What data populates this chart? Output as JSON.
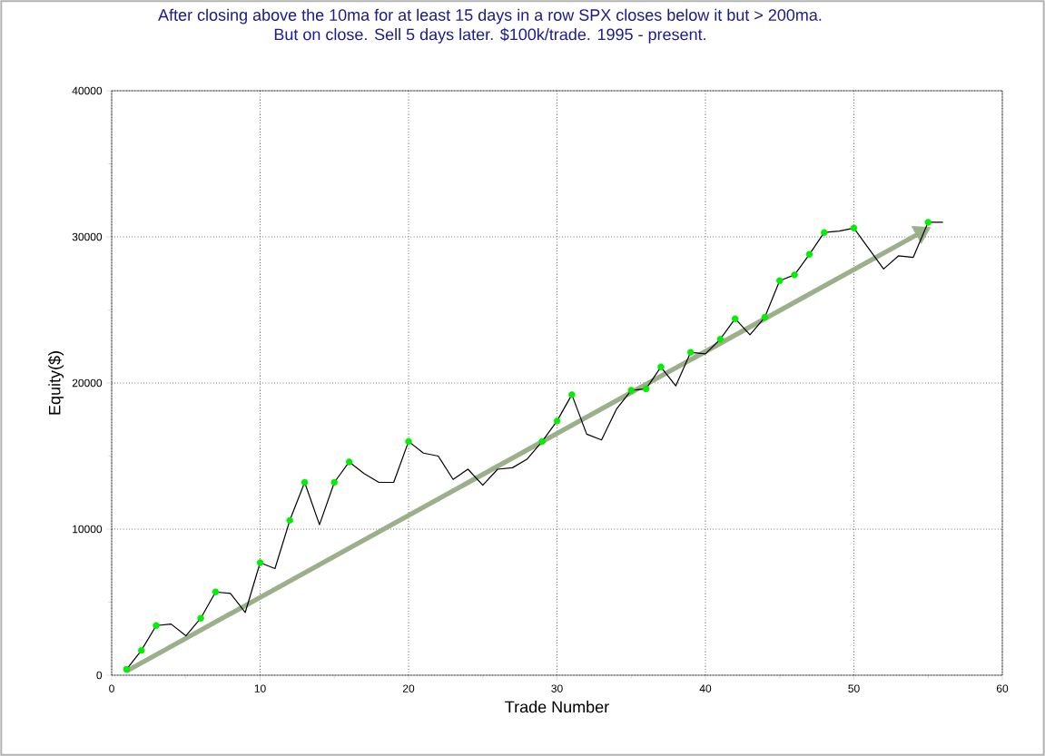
{
  "chart_data": {
    "type": "line",
    "title": "After closing above the 10ma for at least 15 days in a row SPX closes below it but > 200ma.",
    "subtitle": "But on close. Sell 5 days later. $100k/trade. 1995 - present.",
    "xlabel": "Trade Number",
    "ylabel": "Equity($)",
    "xlim": [
      0,
      60
    ],
    "ylim": [
      0,
      40000
    ],
    "xticks": [
      0,
      10,
      20,
      30,
      40,
      50,
      60
    ],
    "yticks": [
      0,
      10000,
      20000,
      30000,
      40000
    ],
    "grid": true,
    "series": [
      {
        "color": "#000000",
        "marker": "none",
        "x": [
          1,
          2,
          3,
          4,
          5,
          6,
          7,
          8,
          9,
          10,
          11,
          12,
          13,
          14,
          15,
          16,
          17,
          18,
          19,
          20,
          21,
          22,
          23,
          24,
          25,
          26,
          27,
          28,
          29,
          30,
          31,
          32,
          33,
          34,
          35,
          36,
          37,
          38,
          39,
          40,
          41,
          42,
          43,
          44,
          45,
          46,
          47,
          48,
          49,
          50,
          51,
          52,
          53,
          54,
          55,
          56
        ],
        "values": [
          400,
          1700,
          3400,
          3500,
          2700,
          3900,
          5700,
          5600,
          4300,
          7700,
          7300,
          10600,
          13200,
          10300,
          13200,
          14600,
          13800,
          13200,
          13200,
          16000,
          15200,
          15000,
          13400,
          14100,
          13000,
          14100,
          14200,
          14800,
          16000,
          17400,
          19200,
          16500,
          16100,
          18200,
          19500,
          19600,
          21100,
          19800,
          22100,
          22000,
          23000,
          24400,
          23300,
          24500,
          27000,
          27400,
          28800,
          30300,
          30400,
          30600,
          29200,
          27800,
          28700,
          28600,
          31000,
          31000
        ]
      },
      {
        "type": "scatter",
        "color": "#00ee00",
        "marker": "circle",
        "x": [
          1,
          2,
          3,
          6,
          7,
          10,
          12,
          13,
          15,
          16,
          20,
          29,
          30,
          31,
          35,
          36,
          37,
          39,
          41,
          42,
          44,
          45,
          46,
          47,
          48,
          50,
          55
        ],
        "values": [
          400,
          1700,
          3400,
          3900,
          5700,
          7700,
          10600,
          13200,
          13200,
          14600,
          16000,
          16000,
          17400,
          19200,
          19500,
          19600,
          21100,
          22100,
          23000,
          24400,
          24500,
          27000,
          27400,
          28800,
          30300,
          30600,
          31000
        ]
      }
    ]
  }
}
